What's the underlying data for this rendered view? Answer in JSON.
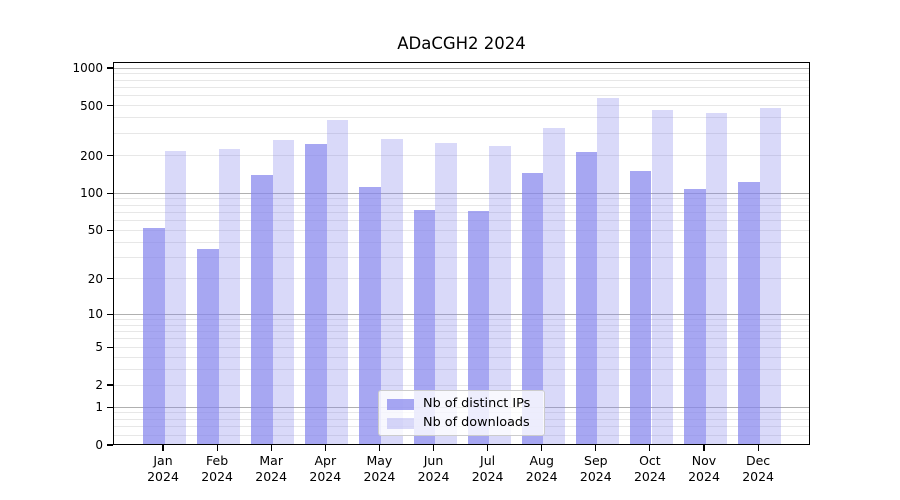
{
  "title": "ADaCGH2 2024",
  "legend": {
    "items": [
      {
        "label": "Nb of distinct IPs"
      },
      {
        "label": "Nb of downloads"
      }
    ]
  },
  "chart_data": {
    "type": "bar",
    "title": "ADaCGH2 2024",
    "categories": [
      "Jan 2024",
      "Feb 2024",
      "Mar 2024",
      "Apr 2024",
      "May 2024",
      "Jun 2024",
      "Jul 2024",
      "Aug 2024",
      "Sep 2024",
      "Oct 2024",
      "Nov 2024",
      "Dec 2024"
    ],
    "months": [
      "Jan",
      "Feb",
      "Mar",
      "Apr",
      "May",
      "Jun",
      "Jul",
      "Aug",
      "Sep",
      "Oct",
      "Nov",
      "Dec"
    ],
    "year": "2024",
    "series": [
      {
        "name": "Nb of distinct IPs",
        "color": "rgba(133,133,237,0.72)",
        "values": [
          52,
          35,
          140,
          247,
          112,
          73,
          72,
          146,
          215,
          151,
          108,
          123
        ]
      },
      {
        "name": "Nb of downloads",
        "color": "rgba(133,133,237,0.31)",
        "values": [
          218,
          226,
          269,
          388,
          273,
          254,
          238,
          334,
          573,
          462,
          435,
          484
        ]
      }
    ],
    "y_axis": {
      "scale": "log1p",
      "ticks": [
        0,
        1,
        2,
        5,
        10,
        20,
        50,
        100,
        200,
        500,
        1000
      ],
      "ylim": [
        0,
        1000
      ]
    },
    "x_axis": {
      "tick_label_lines": 2
    },
    "grid": {
      "major_values": [
        1,
        10,
        100,
        1000
      ],
      "minor_values": [
        0.2,
        0.4,
        0.6,
        0.8,
        2,
        3,
        4,
        5,
        6,
        7,
        8,
        9,
        20,
        30,
        40,
        50,
        60,
        70,
        80,
        90,
        200,
        300,
        400,
        500,
        600,
        700,
        800,
        900
      ],
      "major_color": "#b0b0b0",
      "minor_color": "#e7e7e7",
      "grid_on": true
    },
    "legend_position": "lower center",
    "bar_colors": {
      "distinct_ips": "rgba(133,133,237,0.72)",
      "downloads": "rgba(133,133,237,0.31)"
    }
  }
}
